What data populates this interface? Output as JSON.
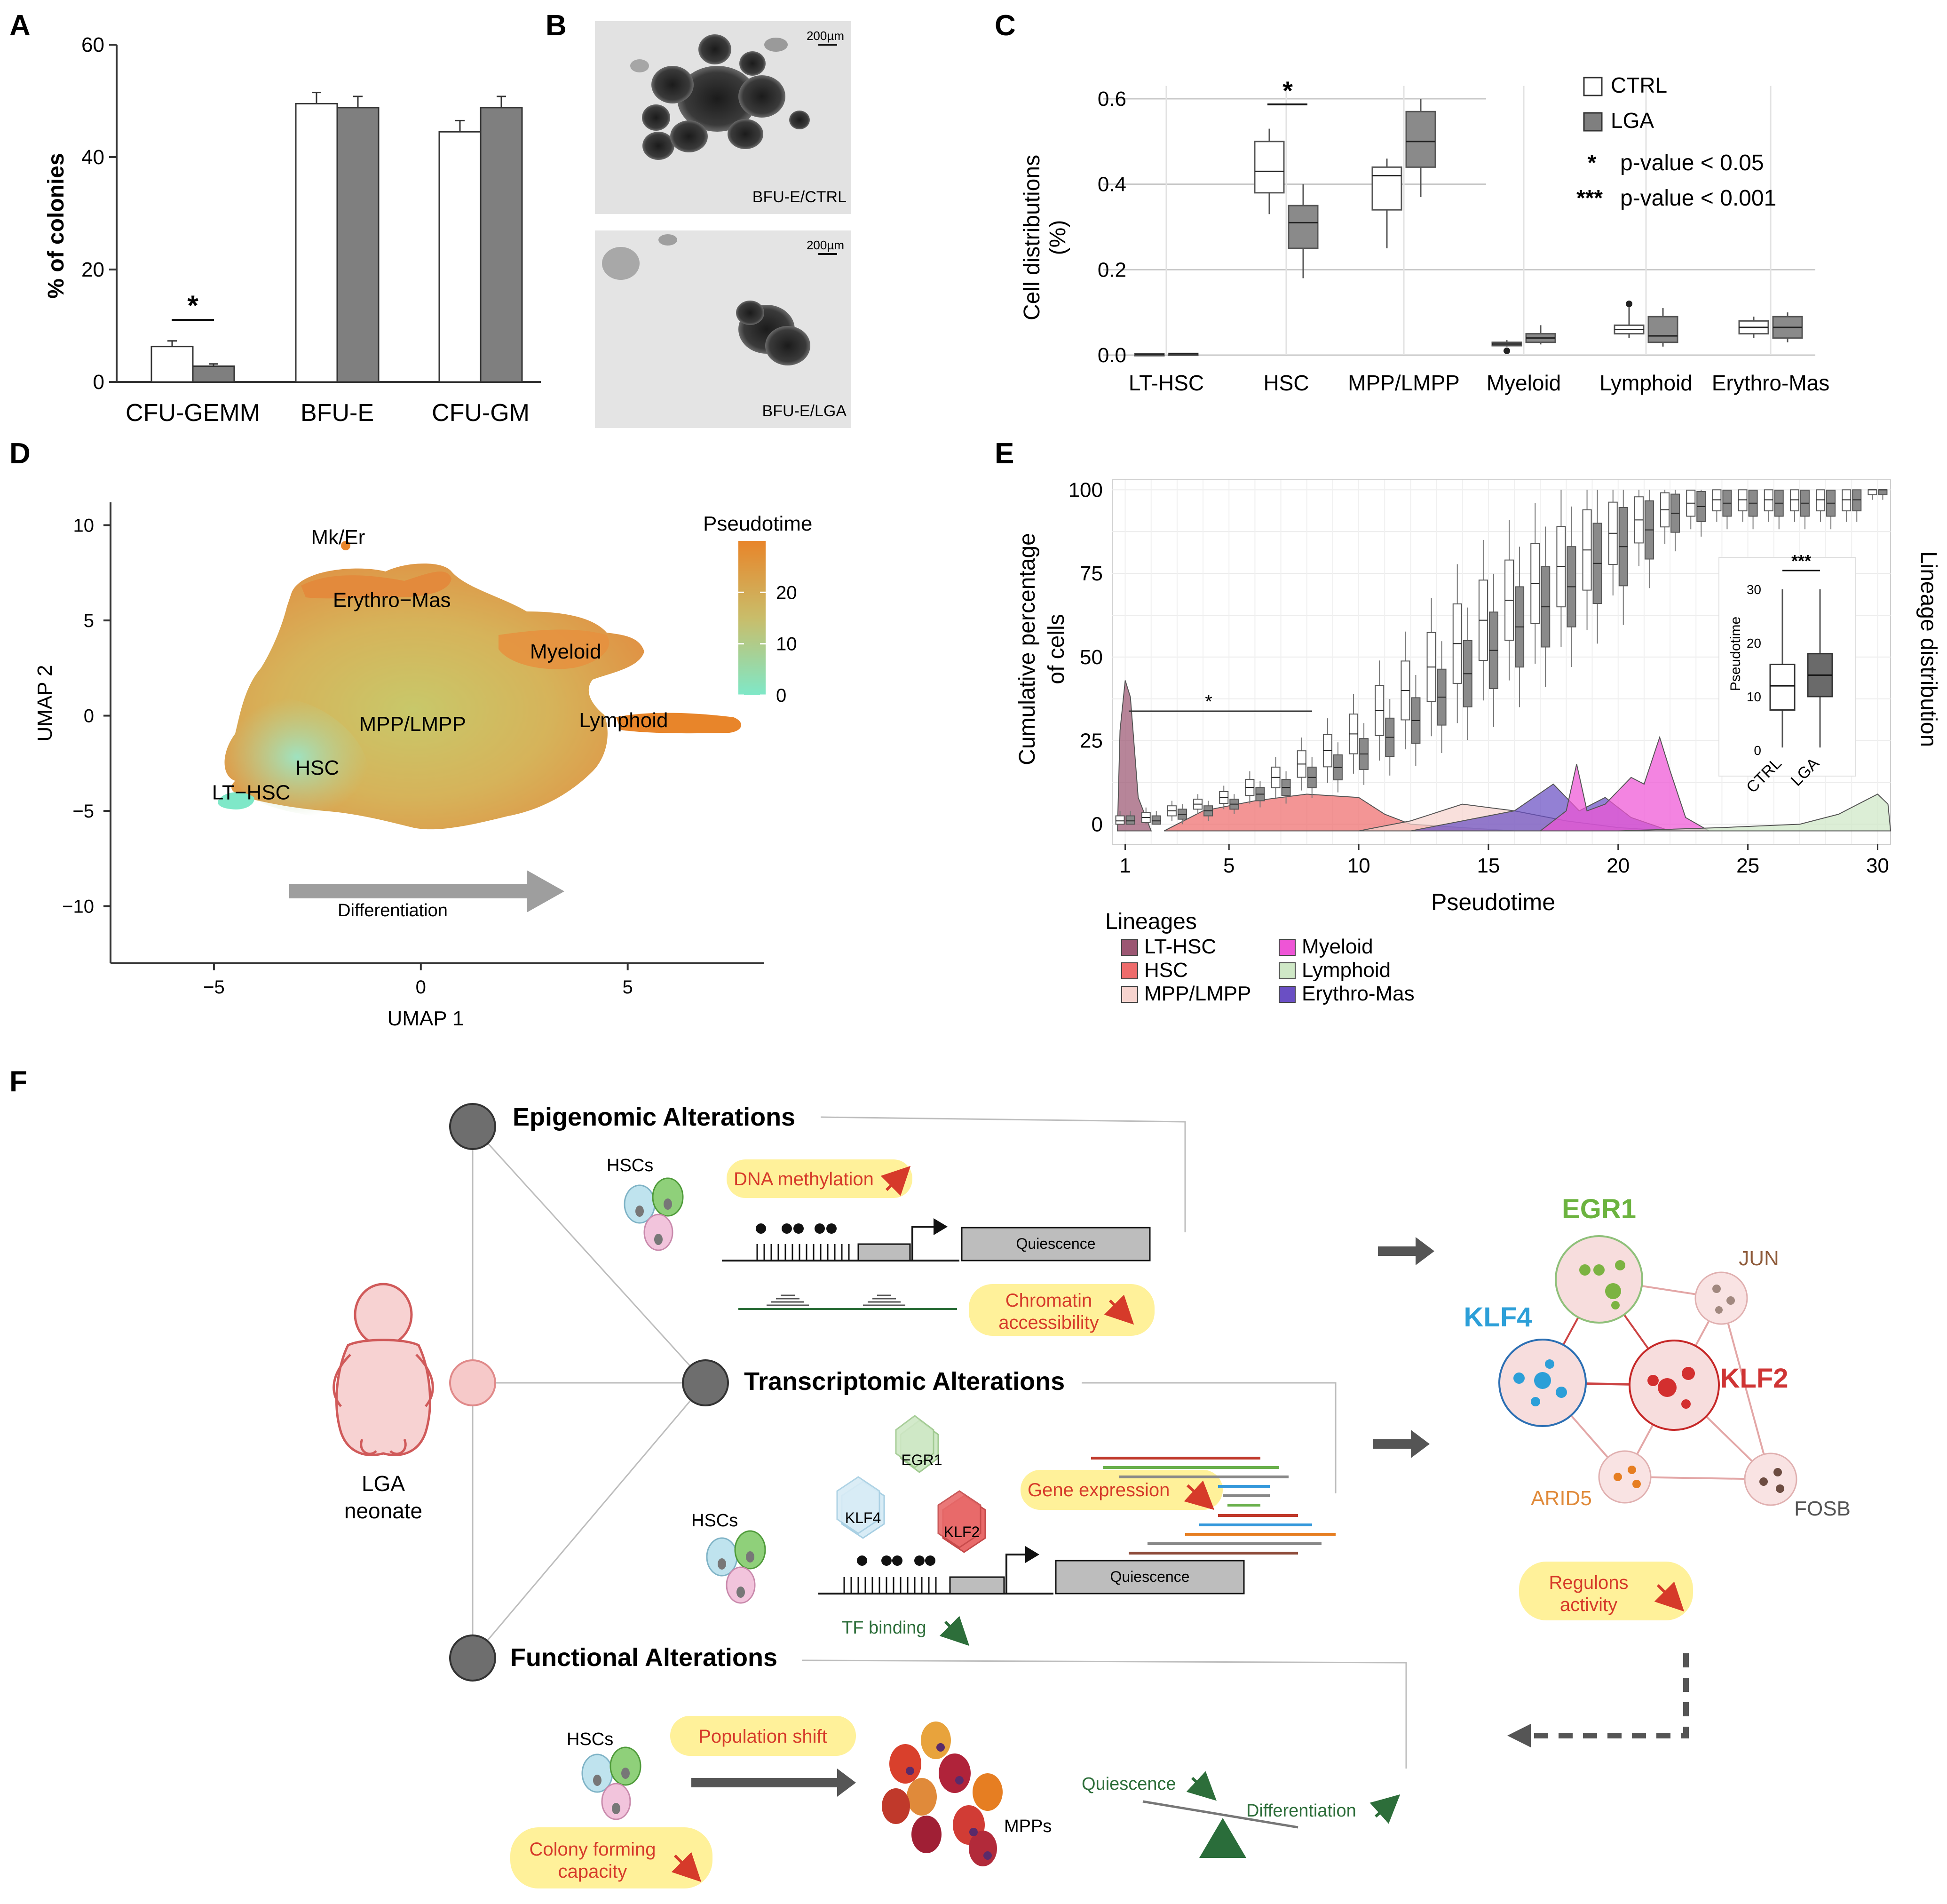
{
  "colors": {
    "ctrl": "#ffffff",
    "lga": "#7f7f7f",
    "pseudo_low": "#7fe8c8",
    "pseudo_high": "#e8852a",
    "lt_hsc": "#9b5672",
    "hsc": "#ee6c6c",
    "mpp": "#f7d4cf",
    "myeloid": "#ee55d6",
    "lymphoid": "#cfe8c6",
    "erythro": "#6a4fc4",
    "highlight": "#fff19a",
    "red_arrow": "#d63a2a",
    "green_arrow": "#2d6e3a",
    "klf4": "#2c9fd8",
    "egr1": "#6cb33f",
    "klf2": "#cf3434"
  },
  "panelA": {
    "letter": "A",
    "chart_data": {
      "type": "bar",
      "categories": [
        "CFU-GEMM",
        "BFU-E",
        "CFU-GM"
      ],
      "series": [
        {
          "name": "CTRL",
          "values": [
            6.3,
            49.5,
            44.5
          ],
          "errors": [
            1.0,
            2.0,
            2.0
          ]
        },
        {
          "name": "LGA",
          "values": [
            2.8,
            48.8,
            48.8
          ],
          "errors": [
            0.4,
            2.0,
            2.0
          ]
        }
      ],
      "ylabel": "% of colonies",
      "ylim": [
        0,
        60
      ],
      "yticks": [
        0,
        20,
        40,
        60
      ],
      "annotation": "*"
    }
  },
  "panelB": {
    "letter": "B",
    "scale_label": "200µm",
    "top_label": "BFU-E/CTRL",
    "bottom_label": "BFU-E/LGA"
  },
  "panelC": {
    "letter": "C",
    "chart_data": {
      "type": "box",
      "categories": [
        "LT-HSC",
        "HSC",
        "MPP/LMPP",
        "Myeloid",
        "Lymphoid",
        "Erythro-Mas"
      ],
      "series": [
        {
          "name": "CTRL",
          "boxes": [
            {
              "min": 0.0,
              "q1": 0.001,
              "median": 0.002,
              "q3": 0.003,
              "max": 0.004
            },
            {
              "min": 0.33,
              "q1": 0.38,
              "median": 0.43,
              "q3": 0.5,
              "max": 0.53
            },
            {
              "min": 0.25,
              "q1": 0.34,
              "median": 0.42,
              "q3": 0.44,
              "max": 0.46
            },
            {
              "min": 0.02,
              "q1": 0.022,
              "median": 0.026,
              "q3": 0.03,
              "max": 0.035
            },
            {
              "min": 0.04,
              "q1": 0.05,
              "median": 0.06,
              "q3": 0.07,
              "max": 0.12
            },
            {
              "min": 0.04,
              "q1": 0.05,
              "median": 0.065,
              "q3": 0.08,
              "max": 0.09
            }
          ]
        },
        {
          "name": "LGA",
          "boxes": [
            {
              "min": 0.0,
              "q1": 0.001,
              "median": 0.003,
              "q3": 0.004,
              "max": 0.005
            },
            {
              "min": 0.18,
              "q1": 0.25,
              "median": 0.31,
              "q3": 0.35,
              "max": 0.4
            },
            {
              "min": 0.37,
              "q1": 0.44,
              "median": 0.5,
              "q3": 0.57,
              "max": 0.6
            },
            {
              "min": 0.025,
              "q1": 0.03,
              "median": 0.04,
              "q3": 0.05,
              "max": 0.07
            },
            {
              "min": 0.02,
              "q1": 0.03,
              "median": 0.045,
              "q3": 0.09,
              "max": 0.11
            },
            {
              "min": 0.03,
              "q1": 0.04,
              "median": 0.065,
              "q3": 0.09,
              "max": 0.1
            }
          ]
        }
      ],
      "outliers": [
        {
          "category": "Myeloid",
          "series": "CTRL",
          "value": 0.01
        },
        {
          "category": "Lymphoid",
          "series": "CTRL",
          "value": 0.12
        }
      ],
      "ylabel": "Cell distributions\n(%)",
      "ylim": [
        0,
        0.65
      ],
      "yticks": [
        "0.0",
        "0.2",
        "0.4",
        "0.6"
      ],
      "legend": {
        "ctrl": "CTRL",
        "lga": "LGA",
        "sig1_star": "*",
        "sig1_label": "p-value < 0.05",
        "sig3_star": "***",
        "sig3_label": "p-value < 0.001"
      },
      "annotation": "*"
    }
  },
  "panelD": {
    "letter": "D",
    "chart_data": {
      "type": "scatter",
      "xlabel": "UMAP 1",
      "ylabel": "UMAP 2",
      "xticks": [
        "-5",
        "0",
        "5"
      ],
      "yticks": [
        "10",
        "5",
        "0",
        "-5",
        "-10"
      ],
      "xlim": [
        -7.5,
        8.3
      ],
      "ylim": [
        -13,
        11.2
      ],
      "colorbar_title": "Pseudotime",
      "colorbar_ticks": [
        "20",
        "10",
        "0"
      ],
      "cluster_labels": [
        {
          "label": "Mk/Er",
          "x": -2.0,
          "y": 9.0
        },
        {
          "label": "Erythro-Mas",
          "x": -0.7,
          "y": 5.7
        },
        {
          "label": "Myeloid",
          "x": 3.5,
          "y": 3.0
        },
        {
          "label": "MPP/LMPP",
          "x": -0.2,
          "y": -0.8
        },
        {
          "label": "Lymphoid",
          "x": 4.9,
          "y": -0.6
        },
        {
          "label": "HSC",
          "x": -2.5,
          "y": -3.1
        },
        {
          "label": "LT-HSC",
          "x": -4.1,
          "y": -4.4
        }
      ],
      "arrow_label": "Differentiation"
    }
  },
  "panelE": {
    "letter": "E",
    "chart_data": {
      "type": "box+density",
      "xlabel": "Pseudotime",
      "ylabel": "Cumulative percentage\nof cells",
      "right_label": "Lineage distribution",
      "xticks": [
        "1",
        "5",
        "10",
        "15",
        "20",
        "25",
        "30"
      ],
      "yticks": [
        "0",
        "25",
        "50",
        "75",
        "100"
      ],
      "xlim": [
        0.5,
        30.5
      ],
      "ylim": [
        -6,
        103
      ],
      "ctrl_medians": [
        1,
        2,
        4,
        6,
        8,
        11,
        14,
        18,
        22,
        27,
        34,
        40,
        47,
        54,
        61,
        67,
        72,
        77,
        82,
        87,
        91,
        94,
        96,
        97,
        97,
        97,
        97,
        97,
        97,
        100
      ],
      "lga_medians": [
        1,
        1,
        3,
        4,
        6,
        9,
        11,
        14,
        17,
        21,
        26,
        31,
        38,
        45,
        52,
        59,
        65,
        71,
        78,
        83,
        88,
        93,
        95,
        96,
        96,
        96,
        96,
        96,
        97,
        100
      ],
      "significance_star": "*",
      "inset": {
        "categories": [
          "CTRL",
          "LGA"
        ],
        "ylabel": "Pseudotime",
        "yticks": [
          "0",
          "10",
          "20",
          "30"
        ],
        "ylim": [
          0,
          32
        ],
        "boxes": [
          {
            "min": 0.5,
            "q1": 7.5,
            "median": 12,
            "q3": 16,
            "max": 30
          },
          {
            "min": 0.5,
            "q1": 10,
            "median": 14,
            "q3": 18,
            "max": 30
          }
        ],
        "annotation": "***"
      }
    },
    "legend_title": "Lineages",
    "legend": [
      {
        "label": "LT-HSC",
        "color": "#9b5672"
      },
      {
        "label": "HSC",
        "color": "#ee6c6c"
      },
      {
        "label": "MPP/LMPP",
        "color": "#f7d4cf"
      },
      {
        "label": "Myeloid",
        "color": "#ee55d6"
      },
      {
        "label": "Lymphoid",
        "color": "#cfe8c6"
      },
      {
        "label": "Erythro-Mas",
        "color": "#6a4fc4"
      }
    ]
  },
  "panelF": {
    "letter": "F",
    "epigenomic_title": "Epigenomic Alterations",
    "transcriptomic_title": "Transcriptomic Alterations",
    "functional_title": "Functional Alterations",
    "hscs": "HSCs",
    "dna_methylation": "DNA methylation",
    "chromatin_line1": "Chromatin",
    "chromatin_line2": "accessibility",
    "quiescence_box": "Quiescence",
    "lga_line1": "LGA",
    "lga_line2": "neonate",
    "egr1_small": "EGR1",
    "klf4_small": "KLF4",
    "klf2_small": "KLF2",
    "gene_expression": "Gene expression",
    "tf_binding": "TF binding",
    "population_shift": "Population shift",
    "colony_line1": "Colony forming",
    "colony_line2": "capacity",
    "mpps": "MPPs",
    "quiescence": "Quiescence",
    "differentiation": "Differentiation",
    "network": {
      "egr1": "EGR1",
      "klf4": "KLF4",
      "klf2": "KLF2",
      "jun": "JUN",
      "arid5": "ARID5",
      "fosb": "FOSB"
    },
    "regulons_line1": "Regulons",
    "regulons_line2": "activity"
  }
}
